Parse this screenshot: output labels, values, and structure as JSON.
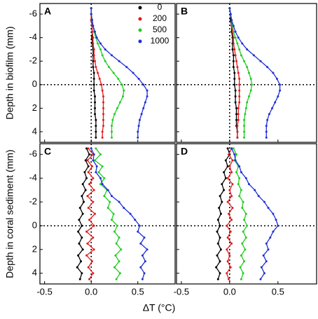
{
  "chart_data": [
    {
      "type": "line",
      "label": "A",
      "ylabel": "Depth in biofilm (mm)",
      "legend": "upper right",
      "zero_lines": true,
      "xlim": [
        -0.55,
        0.9
      ],
      "xticks": [
        -0.5,
        0,
        0.5
      ],
      "xtick_labels": false,
      "ylim": [
        4.9,
        -6.9
      ],
      "yticks": [
        -6,
        -4,
        -2,
        0,
        2,
        4
      ],
      "ytick_labels": true,
      "y": [
        -6.5,
        -6,
        -5.5,
        -5,
        -4.5,
        -4,
        -3.5,
        -3,
        -2.5,
        -2,
        -1.5,
        -1,
        -0.5,
        0,
        0.5,
        1,
        1.5,
        2,
        2.5,
        3,
        3.5,
        4,
        4.5
      ],
      "series": [
        {
          "name": "0",
          "color": "#000000",
          "values": [
            0,
            0,
            0,
            0.01,
            0.01,
            0.01,
            0.01,
            0.02,
            0.02,
            0.02,
            0.02,
            0.03,
            0.03,
            0.03,
            0.03,
            0.04,
            0.04,
            0.04,
            0.04,
            0.05,
            0.05,
            0.05,
            0.05
          ]
        },
        {
          "name": "200",
          "color": "#e41a1c",
          "values": [
            0,
            0,
            0,
            0.01,
            0.01,
            0.02,
            0.02,
            0.03,
            0.03,
            0.04,
            0.05,
            0.07,
            0.09,
            0.11,
            0.12,
            0.13,
            0.13,
            0.13,
            0.13,
            0.13,
            0.13,
            0.12,
            0.12
          ]
        },
        {
          "name": "500",
          "color": "#22cc22",
          "values": [
            0,
            0,
            0.01,
            0.02,
            0.03,
            0.05,
            0.07,
            0.1,
            0.12,
            0.15,
            0.19,
            0.24,
            0.29,
            0.33,
            0.35,
            0.34,
            0.31,
            0.28,
            0.25,
            0.23,
            0.22,
            0.22,
            0.22
          ]
        },
        {
          "name": "1000",
          "color": "#1f2fd6",
          "values": [
            0,
            0,
            0.01,
            0.02,
            0.04,
            0.06,
            0.1,
            0.15,
            0.22,
            0.3,
            0.38,
            0.45,
            0.51,
            0.56,
            0.6,
            0.6,
            0.58,
            0.56,
            0.54,
            0.52,
            0.51,
            0.5,
            0.5
          ]
        }
      ]
    },
    {
      "type": "line",
      "label": "B",
      "zero_lines": true,
      "xlim": [
        -0.55,
        0.9
      ],
      "xticks": [
        -0.5,
        0,
        0.5
      ],
      "xtick_labels": false,
      "ylim": [
        4.9,
        -6.9
      ],
      "yticks": [
        -6,
        -4,
        -2,
        0,
        2,
        4
      ],
      "ytick_labels": false,
      "y": [
        -6.5,
        -6,
        -5.5,
        -5,
        -4.5,
        -4,
        -3.5,
        -3,
        -2.5,
        -2,
        -1.5,
        -1,
        -0.5,
        0,
        0.5,
        1,
        1.5,
        2,
        2.5,
        3,
        3.5,
        4,
        4.5
      ],
      "series": [
        {
          "color": "#000000",
          "values": [
            0,
            0.01,
            0.01,
            0.02,
            0.02,
            0.03,
            0.03,
            0.03,
            0.04,
            0.04,
            0.04,
            0.05,
            0.05,
            0.05,
            0.06,
            0.06,
            0.06,
            0.07,
            0.07,
            0.07,
            0.07,
            0.08,
            0.08
          ]
        },
        {
          "color": "#e41a1c",
          "values": [
            0,
            0.01,
            0.02,
            0.02,
            0.03,
            0.04,
            0.04,
            0.05,
            0.06,
            0.07,
            0.08,
            0.09,
            0.1,
            0.1,
            0.1,
            0.1,
            0.1,
            0.09,
            0.09,
            0.09,
            0.08,
            0.08,
            0.08
          ]
        },
        {
          "color": "#22cc22",
          "values": [
            0,
            0.01,
            0.02,
            0.03,
            0.04,
            0.06,
            0.08,
            0.1,
            0.12,
            0.15,
            0.18,
            0.2,
            0.22,
            0.23,
            0.22,
            0.2,
            0.18,
            0.17,
            0.16,
            0.15,
            0.15,
            0.15,
            0.15
          ]
        },
        {
          "color": "#1f2fd6",
          "values": [
            0,
            0.01,
            0.02,
            0.04,
            0.06,
            0.09,
            0.13,
            0.18,
            0.25,
            0.32,
            0.39,
            0.45,
            0.49,
            0.52,
            0.52,
            0.5,
            0.47,
            0.44,
            0.41,
            0.39,
            0.38,
            0.38,
            0.38
          ]
        }
      ]
    },
    {
      "type": "line",
      "label": "C",
      "ylabel": "Depth in coral sediment (mm)",
      "xlabel": "ΔT (°C)",
      "zero_lines": true,
      "xlim": [
        -0.55,
        0.9
      ],
      "xticks": [
        -0.5,
        {
          "value": 0,
          "label": "0.0"
        },
        0.5
      ],
      "xtick_labels": true,
      "ylim": [
        4.9,
        -6.9
      ],
      "yticks": [
        -6,
        -4,
        -2,
        0,
        2,
        4
      ],
      "ytick_labels": true,
      "y": [
        -6.5,
        -6,
        -5.5,
        -5,
        -4.5,
        -4,
        -3.5,
        -3,
        -2.5,
        -2,
        -1.5,
        -1,
        -0.5,
        0,
        0.5,
        1,
        1.5,
        2,
        2.5,
        3,
        3.5,
        4,
        4.5
      ],
      "series": [
        {
          "color": "#000000",
          "values": [
            -0.05,
            -0.02,
            -0.06,
            -0.03,
            -0.07,
            -0.05,
            -0.09,
            -0.06,
            -0.1,
            -0.08,
            -0.12,
            -0.09,
            -0.13,
            -0.1,
            -0.14,
            -0.1,
            -0.13,
            -0.09,
            -0.14,
            -0.11,
            -0.15,
            -0.1,
            -0.12
          ]
        },
        {
          "color": "#e41a1c",
          "values": [
            -0.03,
            0.02,
            -0.04,
            0.01,
            -0.03,
            0.02,
            -0.02,
            0.03,
            -0.04,
            0.02,
            -0.03,
            0.04,
            -0.02,
            0.03,
            -0.05,
            0.02,
            -0.04,
            0.03,
            -0.05,
            0.01,
            -0.03,
            0.02,
            -0.02
          ]
        },
        {
          "color": "#22cc22",
          "values": [
            0.05,
            0.1,
            0.04,
            0.12,
            0.08,
            0.14,
            0.1,
            0.17,
            0.14,
            0.2,
            0.18,
            0.24,
            0.22,
            0.28,
            0.25,
            0.3,
            0.27,
            0.32,
            0.26,
            0.3,
            0.25,
            0.31,
            0.27
          ]
        },
        {
          "color": "#1f2fd6",
          "values": [
            0,
            0.03,
            0.02,
            0.06,
            0.05,
            0.1,
            0.12,
            0.18,
            0.22,
            0.3,
            0.35,
            0.42,
            0.47,
            0.52,
            0.5,
            0.57,
            0.53,
            0.6,
            0.55,
            0.58,
            0.53,
            0.57,
            0.55
          ]
        }
      ]
    },
    {
      "type": "line",
      "label": "D",
      "zero_lines": true,
      "xlim": [
        -0.55,
        0.9
      ],
      "xticks": [
        -0.5,
        {
          "value": 0,
          "label": "0.0"
        },
        0.5
      ],
      "xtick_labels": true,
      "ylim": [
        4.9,
        -6.9
      ],
      "yticks": [
        -6,
        -4,
        -2,
        0,
        2,
        4
      ],
      "ytick_labels": false,
      "y": [
        -6.5,
        -6,
        -5.5,
        -5,
        -4.5,
        -4,
        -3.5,
        -3,
        -2.5,
        -2,
        -1.5,
        -1,
        -0.5,
        0,
        0.5,
        1,
        1.5,
        2,
        2.5,
        3,
        3.5,
        4,
        4.5
      ],
      "series": [
        {
          "color": "#000000",
          "values": [
            -0.02,
            0,
            -0.04,
            -0.02,
            -0.06,
            -0.04,
            -0.08,
            -0.06,
            -0.1,
            -0.08,
            -0.11,
            -0.09,
            -0.12,
            -0.1,
            -0.13,
            -0.1,
            -0.12,
            -0.09,
            -0.13,
            -0.1,
            -0.14,
            -0.1,
            -0.12
          ]
        },
        {
          "color": "#e41a1c",
          "values": [
            0.02,
            -0.01,
            0.03,
            0,
            0.02,
            -0.02,
            0.03,
            0,
            0.02,
            -0.02,
            0.03,
            -0.01,
            0.02,
            -0.03,
            0.01,
            -0.02,
            0.02,
            -0.03,
            0,
            -0.02,
            0.01,
            -0.03,
            -0.01
          ]
        },
        {
          "color": "#22cc22",
          "values": [
            0.04,
            0.07,
            0.05,
            0.09,
            0.07,
            0.1,
            0.09,
            0.12,
            0.1,
            0.14,
            0.13,
            0.17,
            0.15,
            0.18,
            0.14,
            0.17,
            0.13,
            0.16,
            0.12,
            0.15,
            0.11,
            0.14,
            0.12
          ]
        },
        {
          "color": "#1f2fd6",
          "values": [
            0.02,
            0.05,
            0.06,
            0.1,
            0.12,
            0.17,
            0.2,
            0.26,
            0.3,
            0.36,
            0.4,
            0.45,
            0.48,
            0.5,
            0.45,
            0.42,
            0.38,
            0.4,
            0.35,
            0.38,
            0.33,
            0.36,
            0.32
          ]
        }
      ]
    }
  ]
}
